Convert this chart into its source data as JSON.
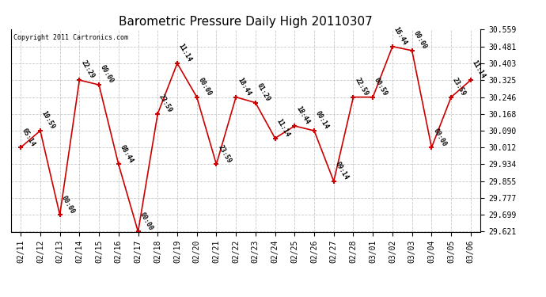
{
  "title": "Barometric Pressure Daily High 20110307",
  "copyright": "Copyright 2011 Cartronics.com",
  "dates": [
    "02/11",
    "02/12",
    "02/13",
    "02/14",
    "02/15",
    "02/16",
    "02/17",
    "02/18",
    "02/19",
    "02/20",
    "02/21",
    "02/22",
    "02/23",
    "02/24",
    "02/25",
    "02/26",
    "02/27",
    "02/28",
    "03/01",
    "03/02",
    "03/03",
    "03/04",
    "03/05",
    "03/06"
  ],
  "values": [
    30.012,
    30.09,
    29.699,
    30.325,
    30.303,
    29.934,
    29.621,
    30.168,
    30.403,
    30.246,
    29.934,
    30.246,
    30.22,
    30.055,
    30.112,
    30.09,
    29.855,
    30.246,
    30.246,
    30.481,
    30.462,
    30.012,
    30.246,
    30.325
  ],
  "labels": [
    "05:14",
    "10:59",
    "00:00",
    "22:29",
    "00:00",
    "08:44",
    "00:00",
    "23:59",
    "11:14",
    "00:00",
    "23:59",
    "18:44",
    "01:29",
    "11:14",
    "18:44",
    "00:14",
    "09:14",
    "22:59",
    "00:59",
    "16:44",
    "00:00",
    "00:00",
    "23:59",
    "11:14"
  ],
  "ylim_min": 29.621,
  "ylim_max": 30.559,
  "yticks": [
    29.621,
    29.699,
    29.777,
    29.855,
    29.934,
    30.012,
    30.09,
    30.168,
    30.246,
    30.325,
    30.403,
    30.481,
    30.559
  ],
  "line_color": "#cc0000",
  "marker_color": "#cc0000",
  "bg_color": "#ffffff",
  "grid_color": "#bbbbbb",
  "title_fontsize": 11,
  "label_fontsize": 6,
  "tick_fontsize": 7,
  "copyright_fontsize": 6,
  "fig_width": 6.9,
  "fig_height": 3.75,
  "dpi": 100
}
